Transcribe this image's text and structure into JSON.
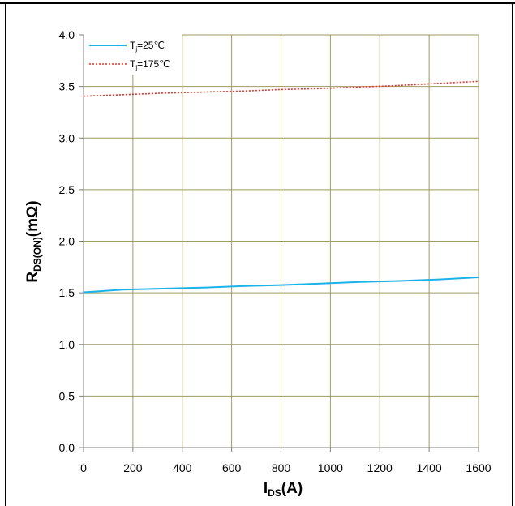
{
  "chart_data": {
    "type": "line",
    "xlabel": "I",
    "xlabel_sub": "DS",
    "xlabel_suffix": "(A)",
    "ylabel": "R",
    "ylabel_sub": "DS(ON)",
    "ylabel_suffix": "(mΩ)",
    "xlim": [
      0,
      1600
    ],
    "ylim": [
      0,
      4.0
    ],
    "x_ticks": [
      "0",
      "200",
      "400",
      "600",
      "800",
      "1000",
      "1200",
      "1400",
      "1600"
    ],
    "y_ticks": [
      "0.0",
      "0.5",
      "1.0",
      "1.5",
      "2.0",
      "2.5",
      "3.0",
      "3.5",
      "4.0"
    ],
    "grid": true,
    "legend_position": "top-left",
    "series": [
      {
        "name": "T",
        "name_sub": "j",
        "name_suffix": "=25℃",
        "color": "#1ab2e8",
        "style": "solid",
        "x": [
          0,
          160,
          320,
          480,
          640,
          800,
          960,
          1120,
          1280,
          1440,
          1600
        ],
        "y": [
          1.505,
          1.53,
          1.54,
          1.55,
          1.565,
          1.575,
          1.59,
          1.605,
          1.615,
          1.63,
          1.65
        ]
      },
      {
        "name": "T",
        "name_sub": "j",
        "name_suffix": "=175℃",
        "color": "#e8312a",
        "style": "dotted",
        "x": [
          0,
          160,
          320,
          480,
          640,
          800,
          960,
          1120,
          1280,
          1440,
          1600
        ],
        "y": [
          3.405,
          3.42,
          3.435,
          3.445,
          3.455,
          3.47,
          3.48,
          3.495,
          3.51,
          3.53,
          3.55
        ]
      }
    ]
  }
}
